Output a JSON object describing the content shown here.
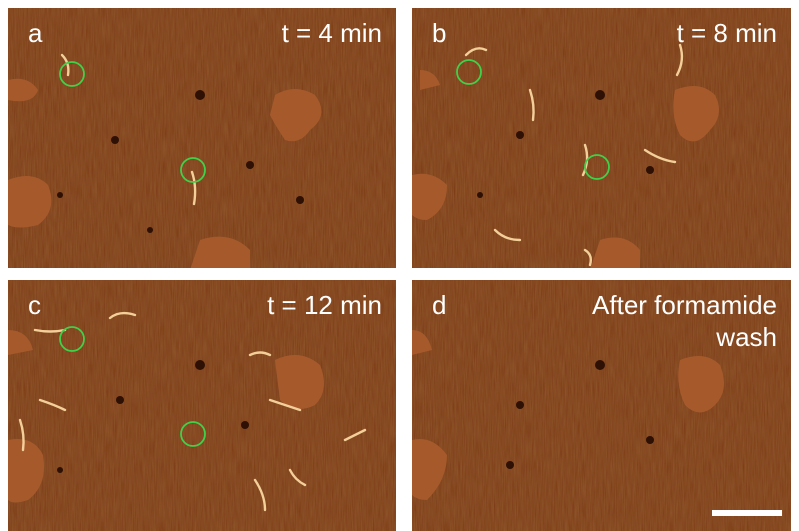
{
  "panels": [
    {
      "label": "a",
      "caption_lines": [
        "t = 4 min"
      ]
    },
    {
      "label": "b",
      "caption_lines": [
        "t = 8 min"
      ]
    },
    {
      "label": "c",
      "caption_lines": [
        "t = 12 min"
      ]
    },
    {
      "label": "d",
      "caption_lines": [
        "After formamide",
        "wash"
      ]
    }
  ]
}
